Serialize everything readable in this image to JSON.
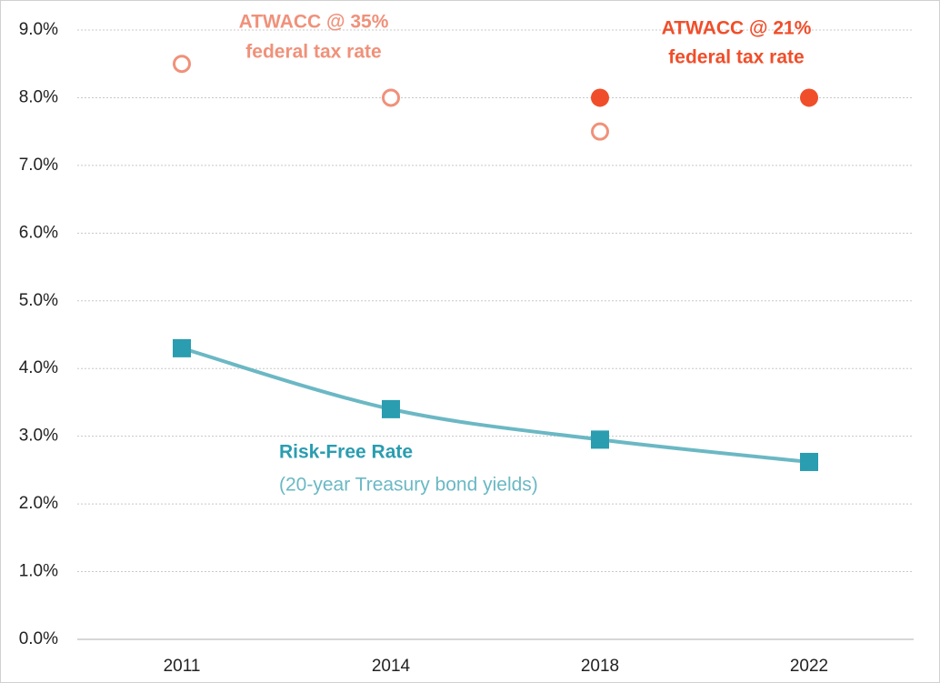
{
  "chart_data": {
    "type": "line",
    "categories": [
      "2011",
      "2014",
      "2018",
      "2022"
    ],
    "series": [
      {
        "name": "Risk-Free Rate",
        "note": "(20-year Treasury bond yields)",
        "color": "#2a9db0",
        "line_color": "#6bb8c4",
        "marker": "square",
        "values": [
          4.3,
          3.4,
          2.95,
          2.62
        ]
      },
      {
        "name": "ATWACC @ 35%",
        "note": "federal tax rate",
        "color": "#f0917a",
        "marker": "open-circle",
        "values": [
          8.5,
          8.0,
          7.5,
          null
        ]
      },
      {
        "name": "ATWACC @ 21%",
        "note": "federal tax rate",
        "color": "#f04e2a",
        "marker": "circle",
        "values": [
          null,
          null,
          8.0,
          8.0
        ]
      }
    ],
    "ylim": [
      0,
      9
    ],
    "yticks": [
      {
        "value": 0,
        "label": "0.0%"
      },
      {
        "value": 1,
        "label": "1.0%"
      },
      {
        "value": 2,
        "label": "2.0%"
      },
      {
        "value": 3,
        "label": "3.0%"
      },
      {
        "value": 4,
        "label": "4.0%"
      },
      {
        "value": 5,
        "label": "5.0%"
      },
      {
        "value": 6,
        "label": "6.0%"
      },
      {
        "value": 7,
        "label": "7.0%"
      },
      {
        "value": 8,
        "label": "8.0%"
      },
      {
        "value": 9,
        "label": "9.0%"
      }
    ],
    "grid": true
  }
}
